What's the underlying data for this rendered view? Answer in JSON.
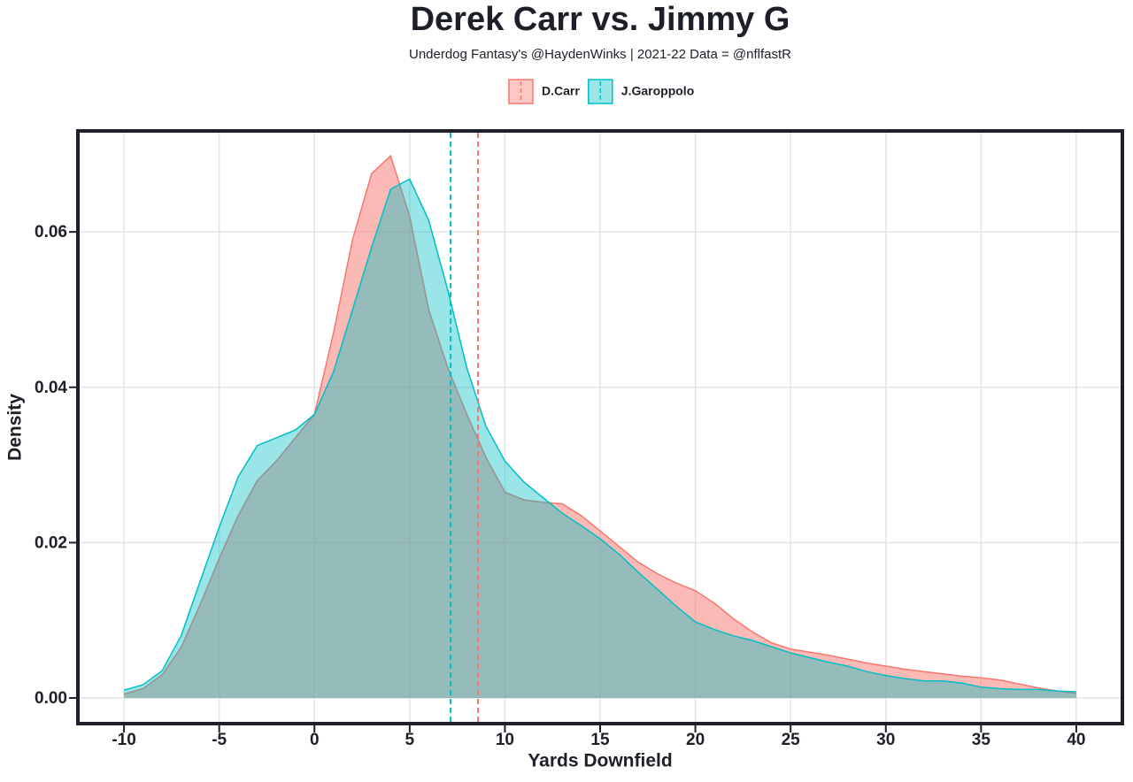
{
  "chart_data": {
    "type": "density",
    "title": "Derek Carr vs. Jimmy G",
    "subtitle": "Underdog Fantasy's @HaydenWinks | 2021-22 Data = @nflfastR",
    "x_label": "Yards Downfield",
    "y_label": "Density",
    "x": [
      -10,
      -9,
      -8,
      -7,
      -6,
      -5,
      -4,
      -3,
      -2,
      -1,
      0,
      1,
      2,
      3,
      4,
      5,
      6,
      7,
      8,
      9,
      10,
      11,
      12,
      13,
      14,
      15,
      16,
      17,
      18,
      19,
      20,
      21,
      22,
      23,
      24,
      25,
      26,
      27,
      28,
      29,
      30,
      31,
      32,
      33,
      34,
      35,
      36,
      37,
      38,
      39,
      40
    ],
    "series": [
      {
        "name": "D.Carr",
        "color": "#F8766D",
        "mean": 8.59,
        "values": [
          0.0005,
          0.0012,
          0.003,
          0.0065,
          0.012,
          0.018,
          0.0235,
          0.028,
          0.0305,
          0.0335,
          0.0365,
          0.047,
          0.059,
          0.0675,
          0.0698,
          0.062,
          0.05,
          0.0425,
          0.0365,
          0.031,
          0.0265,
          0.0255,
          0.0252,
          0.025,
          0.0235,
          0.0215,
          0.0195,
          0.0175,
          0.016,
          0.0148,
          0.0138,
          0.0122,
          0.0102,
          0.0085,
          0.0071,
          0.0063,
          0.0059,
          0.0055,
          0.005,
          0.0045,
          0.0041,
          0.0037,
          0.0034,
          0.0031,
          0.0028,
          0.0026,
          0.0023,
          0.0018,
          0.0013,
          0.0009,
          0.0006
        ]
      },
      {
        "name": "J.Garoppolo",
        "color": "#00BFC4",
        "mean": 7.15,
        "values": [
          0.001,
          0.0017,
          0.0035,
          0.008,
          0.015,
          0.022,
          0.0285,
          0.0325,
          0.0335,
          0.0345,
          0.0365,
          0.042,
          0.05,
          0.058,
          0.0655,
          0.0668,
          0.0615,
          0.0525,
          0.0425,
          0.035,
          0.0305,
          0.0278,
          0.0258,
          0.0238,
          0.0222,
          0.0205,
          0.0185,
          0.0162,
          0.014,
          0.0118,
          0.0098,
          0.0088,
          0.008,
          0.0074,
          0.0066,
          0.0058,
          0.0052,
          0.0046,
          0.0041,
          0.0034,
          0.0029,
          0.0025,
          0.0022,
          0.0022,
          0.0019,
          0.0014,
          0.0012,
          0.0011,
          0.0011,
          0.0009,
          0.0008
        ]
      }
    ],
    "xlim": [
      -12.42,
      42.42
    ],
    "xticks": [
      -10,
      -5,
      0,
      5,
      10,
      15,
      20,
      25,
      30,
      35,
      40
    ],
    "ylim": [
      -0.0033,
      0.073
    ],
    "yticks": [
      {
        "value": 0,
        "label": "0.00"
      },
      {
        "value": 0.02,
        "label": "0.02"
      },
      {
        "value": 0.04,
        "label": "0.04"
      },
      {
        "value": 0.06,
        "label": "0.06"
      }
    ],
    "grid": true,
    "legend": "top"
  }
}
